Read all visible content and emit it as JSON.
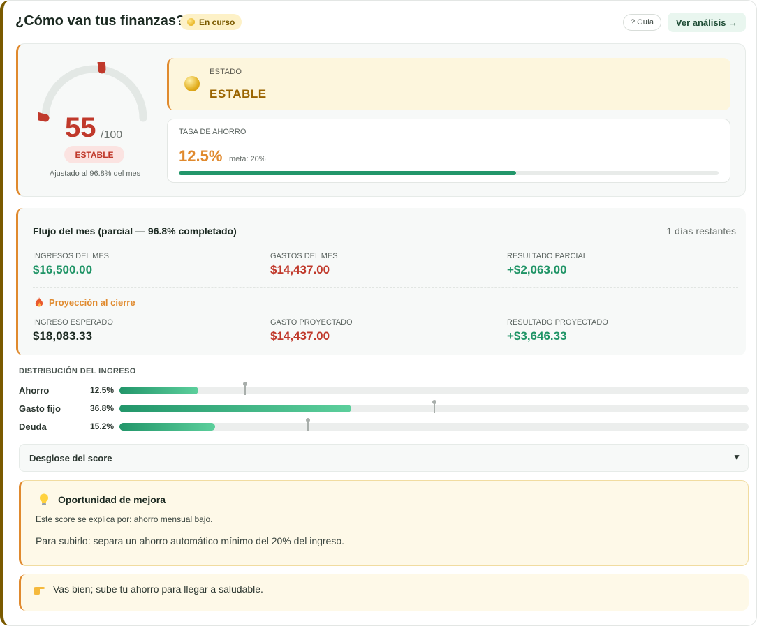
{
  "header": {
    "title": "¿Cómo van tus finanzas?",
    "status_badge": "En curso",
    "guide_button": "? Guía",
    "analysis_button": "Ver análisis →"
  },
  "score": {
    "value": 55,
    "max_label": "/100",
    "level": "ESTABLE",
    "note": "Ajustado al 96.8% del mes",
    "gauge_fraction": 0.55,
    "color": "#c0392b"
  },
  "estado": {
    "label": "ESTADO",
    "value": "ESTABLE"
  },
  "ahorro": {
    "label": "TASA DE AHORRO",
    "value": "12.5%",
    "meta": "meta: 20%",
    "progress": 0.625
  },
  "flujo": {
    "title": "Flujo del mes (parcial — 96.8% completado)",
    "remaining": "1 días restantes",
    "actual": [
      {
        "label": "INGRESOS DEL MES",
        "value": "$16,500.00",
        "tone": "green"
      },
      {
        "label": "GASTOS DEL MES",
        "value": "$14,437.00",
        "tone": "red"
      },
      {
        "label": "RESULTADO PARCIAL",
        "value": "+$2,063.00",
        "tone": "green"
      }
    ],
    "projection_title": "Proyección al cierre",
    "projection_icon": "fire-icon",
    "projected": [
      {
        "label": "INGRESO ESPERADO",
        "value": "$18,083.33",
        "tone": "dark"
      },
      {
        "label": "GASTO PROYECTADO",
        "value": "$14,437.00",
        "tone": "red"
      },
      {
        "label": "RESULTADO PROYECTADO",
        "value": "+$3,646.33",
        "tone": "green"
      }
    ]
  },
  "distribucion": {
    "title": "DISTRIBUCIÓN DEL INGRESO",
    "rows": [
      {
        "name": "Ahorro",
        "pct": "12.5%",
        "fill": 0.125,
        "target": 0.2
      },
      {
        "name": "Gasto fijo",
        "pct": "36.8%",
        "fill": 0.368,
        "target": 0.5
      },
      {
        "name": "Deuda",
        "pct": "15.2%",
        "fill": 0.152,
        "target": 0.3
      }
    ]
  },
  "desglose": {
    "label": "Desglose del score",
    "arrow": "▼"
  },
  "oportunidad": {
    "icon": "lightbulb-icon",
    "title": "Oportunidad de mejora",
    "line1": "Este score se explica por: ahorro mensual bajo.",
    "line2": "Para subirlo: separa un ahorro automático mínimo del 20% del ingreso."
  },
  "tip": {
    "icon": "pointing-hand-icon",
    "text": "Vas bien; sube tu ahorro para llegar a saludable."
  }
}
